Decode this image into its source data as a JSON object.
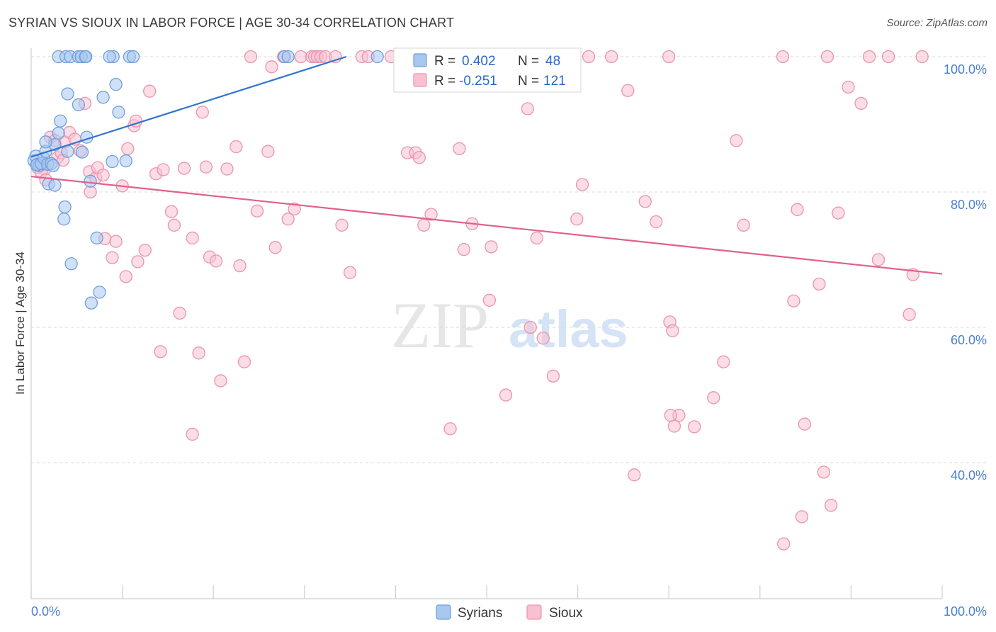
{
  "title": "SYRIAN VS SIOUX IN LABOR FORCE | AGE 30-34 CORRELATION CHART",
  "source": "Source: ZipAtlas.com",
  "watermark": {
    "zip": "ZIP",
    "atlas": "atlas"
  },
  "colors": {
    "syrians_fill": "#a9c8f0",
    "syrians_stroke": "#6f9fdc",
    "syrians_line": "#2f74d0",
    "sioux_fill": "#f7c1d1",
    "sioux_stroke": "#ec93ae",
    "sioux_line": "#e0608c",
    "axis_label": "#4a7fd0",
    "grid": "#d9d9d9"
  },
  "legend": {
    "rows": [
      {
        "r_label": "R =",
        "r_value": "0.402",
        "n_label": "N =",
        "n_value": "48"
      },
      {
        "r_label": "R =",
        "r_value": "-0.251",
        "n_label": "N =",
        "n_value": "121"
      }
    ]
  },
  "bottom_legend": [
    "Syrians",
    "Sioux"
  ],
  "chart_data": {
    "type": "scatter",
    "title": "SYRIAN VS SIOUX IN LABOR FORCE | AGE 30-34 CORRELATION CHART",
    "xlabel": "",
    "ylabel": "In Labor Force | Age 30-34",
    "xlim": [
      0,
      100
    ],
    "ylim": [
      20,
      102
    ],
    "x_tick_labels": [
      "0.0%",
      "100.0%"
    ],
    "y_ticks": [
      40,
      60,
      80,
      100
    ],
    "y_tick_labels": [
      "40.0%",
      "60.0%",
      "80.0%",
      "100.0%"
    ],
    "series": [
      {
        "name": "Syrians",
        "R": 0.402,
        "N": 48,
        "trend": {
          "x": [
            0,
            34.6
          ],
          "y": [
            85.2,
            100.0
          ]
        },
        "points": [
          [
            0.3,
            84.6
          ],
          [
            0.5,
            85.3
          ],
          [
            0.7,
            84.1
          ],
          [
            0.9,
            83.9
          ],
          [
            0.6,
            84.0
          ],
          [
            1.1,
            84.2
          ],
          [
            1.4,
            85.0
          ],
          [
            1.6,
            86.0
          ],
          [
            1.8,
            84.1
          ],
          [
            2.2,
            84.2
          ],
          [
            2.4,
            83.9
          ],
          [
            2.6,
            87.0
          ],
          [
            1.6,
            87.4
          ],
          [
            1.9,
            81.2
          ],
          [
            2.6,
            81.0
          ],
          [
            3.0,
            88.7
          ],
          [
            3.2,
            90.5
          ],
          [
            3.7,
            77.8
          ],
          [
            3.6,
            76.0
          ],
          [
            4.0,
            94.5
          ],
          [
            4.0,
            86.0
          ],
          [
            4.4,
            69.4
          ],
          [
            5.2,
            92.9
          ],
          [
            5.6,
            85.9
          ],
          [
            6.1,
            88.1
          ],
          [
            6.5,
            81.6
          ],
          [
            7.2,
            73.2
          ],
          [
            7.5,
            65.2
          ],
          [
            6.6,
            63.6
          ],
          [
            7.9,
            94.0
          ],
          [
            8.9,
            84.5
          ],
          [
            9.0,
            100
          ],
          [
            9.3,
            95.9
          ],
          [
            9.6,
            91.8
          ],
          [
            10.4,
            84.6
          ],
          [
            10.8,
            100
          ],
          [
            11.2,
            100
          ],
          [
            3.0,
            100
          ],
          [
            3.8,
            100
          ],
          [
            4.3,
            100
          ],
          [
            5.2,
            100
          ],
          [
            5.9,
            100
          ],
          [
            5.5,
            100
          ],
          [
            6.0,
            100
          ],
          [
            8.6,
            100
          ],
          [
            27.8,
            100
          ],
          [
            28.2,
            100
          ],
          [
            38.0,
            100
          ]
        ]
      },
      {
        "name": "Sioux",
        "R": -0.251,
        "N": 121,
        "trend": {
          "x": [
            0,
            100
          ],
          "y": [
            82.3,
            67.9
          ]
        },
        "points": [
          [
            0.7,
            83.6
          ],
          [
            1.2,
            84.0
          ],
          [
            1.5,
            83.4
          ],
          [
            1.1,
            82.9
          ],
          [
            1.6,
            81.8
          ],
          [
            2.1,
            88.1
          ],
          [
            2.6,
            87.6
          ],
          [
            2.9,
            85.1
          ],
          [
            3.3,
            85.8
          ],
          [
            3.5,
            84.7
          ],
          [
            3.7,
            87.4
          ],
          [
            4.2,
            88.8
          ],
          [
            4.8,
            87.8
          ],
          [
            5.4,
            86.1
          ],
          [
            5.9,
            93.1
          ],
          [
            6.5,
            80.0
          ],
          [
            6.4,
            83.0
          ],
          [
            7.1,
            82.1
          ],
          [
            7.3,
            83.6
          ],
          [
            7.9,
            82.5
          ],
          [
            8.1,
            73.1
          ],
          [
            8.9,
            70.3
          ],
          [
            9.3,
            72.7
          ],
          [
            10.0,
            80.9
          ],
          [
            10.4,
            67.5
          ],
          [
            10.6,
            86.4
          ],
          [
            11.3,
            89.8
          ],
          [
            11.5,
            90.5
          ],
          [
            11.7,
            69.7
          ],
          [
            12.5,
            71.4
          ],
          [
            13.0,
            94.9
          ],
          [
            13.7,
            82.7
          ],
          [
            14.2,
            56.4
          ],
          [
            14.5,
            83.3
          ],
          [
            15.4,
            77.1
          ],
          [
            15.7,
            75.1
          ],
          [
            16.3,
            62.1
          ],
          [
            16.8,
            83.5
          ],
          [
            17.7,
            44.2
          ],
          [
            17.7,
            73.2
          ],
          [
            18.4,
            56.2
          ],
          [
            18.8,
            91.8
          ],
          [
            19.2,
            83.7
          ],
          [
            19.6,
            70.4
          ],
          [
            20.3,
            69.8
          ],
          [
            20.8,
            52.1
          ],
          [
            21.5,
            83.4
          ],
          [
            22.5,
            86.7
          ],
          [
            22.9,
            69.1
          ],
          [
            23.4,
            54.9
          ],
          [
            24.1,
            100
          ],
          [
            24.8,
            77.2
          ],
          [
            26.0,
            86.0
          ],
          [
            26.4,
            98.5
          ],
          [
            26.8,
            71.8
          ],
          [
            27.7,
            100
          ],
          [
            28.2,
            76.0
          ],
          [
            28.9,
            77.5
          ],
          [
            29.6,
            100
          ],
          [
            30.8,
            100
          ],
          [
            31.1,
            100
          ],
          [
            31.4,
            100
          ],
          [
            31.8,
            100
          ],
          [
            32.3,
            100
          ],
          [
            33.4,
            100
          ],
          [
            34.1,
            75.1
          ],
          [
            35.0,
            68.1
          ],
          [
            36.3,
            100
          ],
          [
            37.0,
            100
          ],
          [
            39.5,
            100
          ],
          [
            41.3,
            85.8
          ],
          [
            42.2,
            85.8
          ],
          [
            42.6,
            85.1
          ],
          [
            43.1,
            75.1
          ],
          [
            43.9,
            76.7
          ],
          [
            46.0,
            45.0
          ],
          [
            47.0,
            86.4
          ],
          [
            47.5,
            71.5
          ],
          [
            48.4,
            75.3
          ],
          [
            50.3,
            64.0
          ],
          [
            50.5,
            71.9
          ],
          [
            52.1,
            50.0
          ],
          [
            54.5,
            92.3
          ],
          [
            54.8,
            60.0
          ],
          [
            55.5,
            73.2
          ],
          [
            56.2,
            58.4
          ],
          [
            57.3,
            52.8
          ],
          [
            59.9,
            76.0
          ],
          [
            60.5,
            81.1
          ],
          [
            61.2,
            100
          ],
          [
            63.7,
            100
          ],
          [
            65.5,
            95.0
          ],
          [
            67.4,
            78.6
          ],
          [
            66.2,
            38.2
          ],
          [
            68.6,
            75.6
          ],
          [
            70.0,
            100
          ],
          [
            70.1,
            60.8
          ],
          [
            70.4,
            59.5
          ],
          [
            70.6,
            45.4
          ],
          [
            71.1,
            47.0
          ],
          [
            70.2,
            47.0
          ],
          [
            72.8,
            45.3
          ],
          [
            74.9,
            49.6
          ],
          [
            76.0,
            54.9
          ],
          [
            77.4,
            87.6
          ],
          [
            78.2,
            75.1
          ],
          [
            82.5,
            100
          ],
          [
            82.6,
            28.0
          ],
          [
            83.7,
            63.9
          ],
          [
            84.1,
            77.4
          ],
          [
            84.6,
            32.0
          ],
          [
            84.9,
            45.7
          ],
          [
            86.5,
            66.4
          ],
          [
            87.0,
            38.6
          ],
          [
            87.4,
            100
          ],
          [
            87.8,
            33.7
          ],
          [
            88.6,
            76.9
          ],
          [
            89.7,
            95.5
          ],
          [
            91.1,
            93.1
          ],
          [
            92.0,
            100
          ],
          [
            93.0,
            70.0
          ],
          [
            94.1,
            100
          ],
          [
            96.4,
            61.9
          ],
          [
            96.8,
            67.8
          ],
          [
            97.8,
            100
          ]
        ]
      }
    ]
  }
}
